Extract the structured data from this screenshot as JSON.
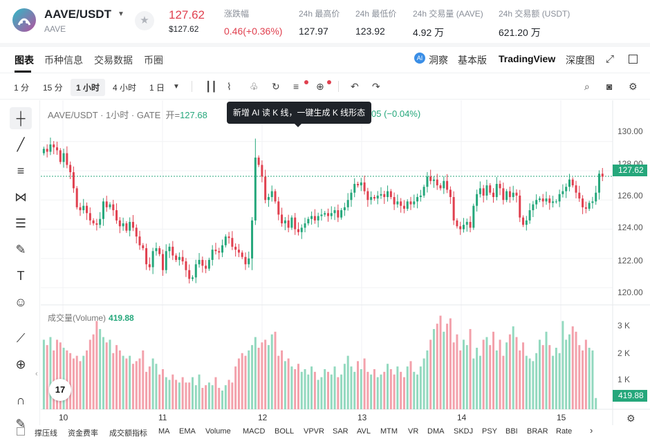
{
  "header": {
    "pair": "AAVE/USDT",
    "subtitle": "AAVE",
    "price": "127.62",
    "price_usd": "$127.62",
    "stats": [
      {
        "label": "涨跌幅",
        "value": "0.46(+0.36%)",
        "color": "#e0404f"
      },
      {
        "label": "24h 最高价",
        "value": "127.97"
      },
      {
        "label": "24h 最低价",
        "value": "123.92"
      },
      {
        "label": "24h 交易量 (AAVE)",
        "value": "4.92 万"
      },
      {
        "label": "24h 交易额 (USDT)",
        "value": "621.20 万"
      }
    ]
  },
  "tabs": [
    "图表",
    "币种信息",
    "交易数据",
    "币圈"
  ],
  "right_tabs": {
    "dongcha": "洞察",
    "basic": "基本版",
    "tv": "TradingView",
    "depth": "深度图"
  },
  "intervals": [
    "1 分",
    "15 分",
    "1 小时",
    "4 小时",
    "1 日"
  ],
  "chart": {
    "title": "AAVE/USDT · 1小时 · GATE",
    "open_label": "开=",
    "open_value": "127.68",
    "tooltip": "新增 AI 读 K 线，一键生成 K 线形态",
    "change_partial": "05 (−0.04%)",
    "volume_label": "成交量(Volume)",
    "volume_value": "419.88",
    "last_price": "127.62"
  },
  "chart_data": {
    "type": "candlestick",
    "x_ticks": [
      "10",
      "11",
      "12",
      "13",
      "14",
      "15"
    ],
    "y_ticks": [
      "130.00",
      "128.00",
      "126.00",
      "124.00",
      "122.00",
      "120.00"
    ],
    "volume_ticks": [
      "3 K",
      "2 K",
      "1 K"
    ],
    "ylim": [
      119.2,
      131.5
    ],
    "volume_max": 3800,
    "ohlc": [],
    "volume": []
  },
  "indicators": [
    "撑压线",
    "资金费率",
    "成交额指标",
    "MA",
    "EMA",
    "Volume",
    "MACD",
    "BOLL",
    "VPVR",
    "SAR",
    "AVL",
    "MTM",
    "VR",
    "DMA",
    "SKDJ",
    "PSY",
    "BBI",
    "BRAR",
    "Rate"
  ],
  "colors": {
    "up": "#25a77b",
    "down": "#e0404f",
    "up_light": "#93d9bf",
    "down_light": "#f3a1ab"
  }
}
